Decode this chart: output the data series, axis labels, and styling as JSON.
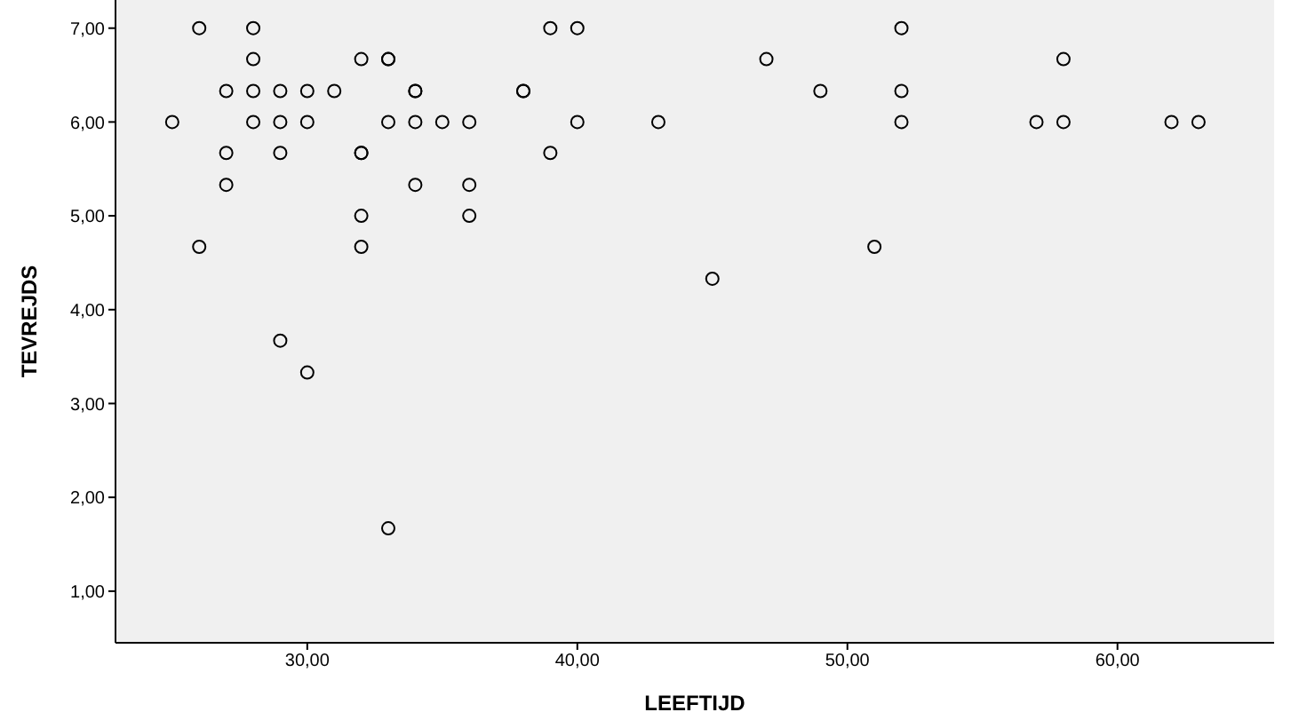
{
  "chart_data": {
    "type": "scatter",
    "xlabel": "LEEFTIJD",
    "ylabel": "TEVREJDS",
    "marker": "circle",
    "grid": false,
    "xlim": [
      22.9,
      65.8
    ],
    "ylim": [
      0.45,
      7.3
    ],
    "xticks": [
      {
        "value": 30,
        "label": "30,00"
      },
      {
        "value": 40,
        "label": "40,00"
      },
      {
        "value": 50,
        "label": "50,00"
      },
      {
        "value": 60,
        "label": "60,00"
      }
    ],
    "yticks": [
      {
        "value": 1,
        "label": "1,00"
      },
      {
        "value": 2,
        "label": "2,00"
      },
      {
        "value": 3,
        "label": "3,00"
      },
      {
        "value": 4,
        "label": "4,00"
      },
      {
        "value": 5,
        "label": "5,00"
      },
      {
        "value": 6,
        "label": "6,00"
      },
      {
        "value": 7,
        "label": "7,00"
      }
    ],
    "series": [
      {
        "color": "#000000",
        "x": [
          25,
          26,
          26,
          27,
          27,
          27,
          28,
          28,
          28,
          28,
          29,
          29,
          29,
          29,
          30,
          30,
          30,
          31,
          32,
          32,
          32,
          32,
          32,
          33,
          33,
          33,
          33,
          34,
          34,
          34,
          34,
          35,
          36,
          36,
          36,
          38,
          38,
          39,
          39,
          40,
          40,
          43,
          45,
          47,
          49,
          51,
          52,
          52,
          52,
          57,
          58,
          58,
          62,
          63
        ],
        "values": [
          6,
          7,
          4.67,
          6.33,
          5.67,
          5.33,
          7,
          6.67,
          6.33,
          6,
          6.33,
          6,
          5.67,
          3.67,
          6.33,
          6,
          3.33,
          6.33,
          6.67,
          5.67,
          5.67,
          5,
          4.67,
          6.67,
          6.67,
          6,
          1.67,
          6.33,
          6.33,
          6,
          5.33,
          6,
          6,
          5.33,
          5,
          6.33,
          6.33,
          7,
          5.67,
          7,
          6,
          6,
          4.33,
          6.67,
          6.33,
          4.67,
          7,
          6.33,
          6,
          6,
          6.67,
          6,
          6,
          6
        ]
      }
    ]
  }
}
